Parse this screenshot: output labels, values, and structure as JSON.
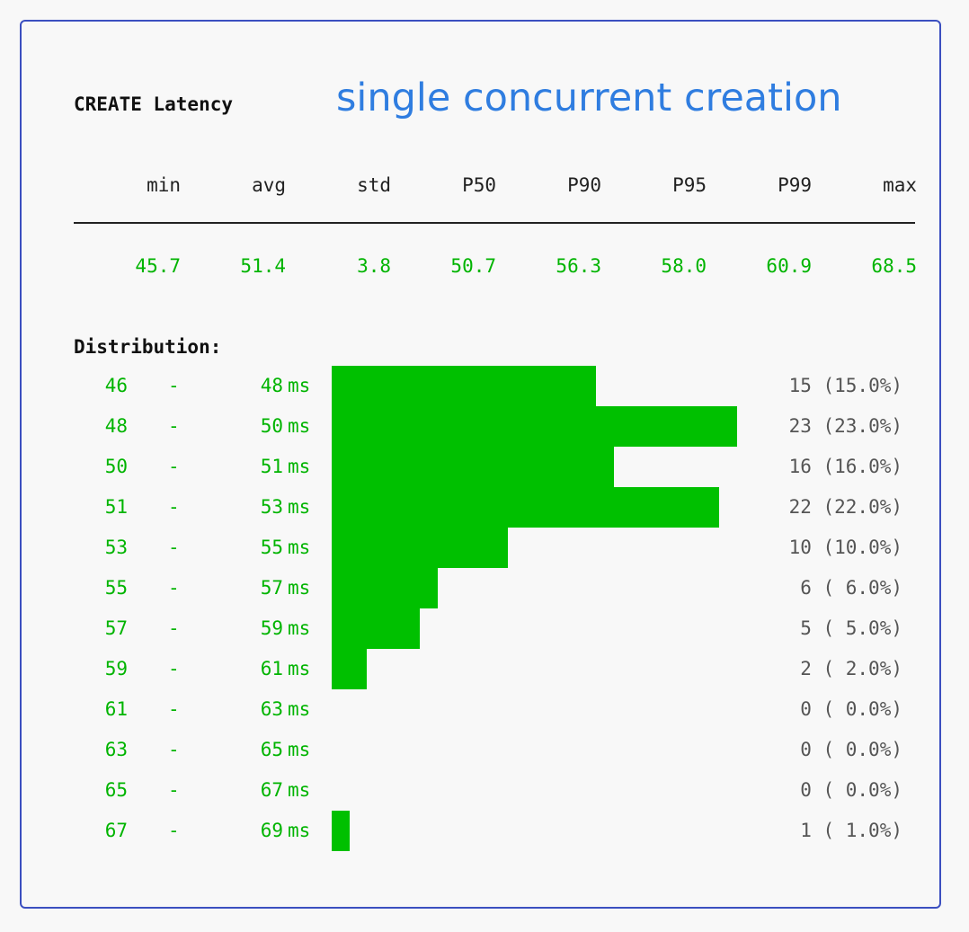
{
  "header": {
    "label": "CREATE Latency",
    "title": "single concurrent creation"
  },
  "stats": {
    "headers": [
      "min",
      "avg",
      "std",
      "P50",
      "P90",
      "P95",
      "P99",
      "max"
    ],
    "values": [
      "45.7",
      "51.4",
      "3.8",
      "50.7",
      "56.3",
      "58.0",
      "60.9",
      "68.5"
    ]
  },
  "distribution": {
    "label": "Distribution:",
    "unit": "ms",
    "rows": [
      {
        "lo": "46",
        "hi": "48",
        "count": 15,
        "count_text": "15 (15.0%)"
      },
      {
        "lo": "48",
        "hi": "50",
        "count": 23,
        "count_text": "23 (23.0%)"
      },
      {
        "lo": "50",
        "hi": "51",
        "count": 16,
        "count_text": "16 (16.0%)"
      },
      {
        "lo": "51",
        "hi": "53",
        "count": 22,
        "count_text": "22 (22.0%)"
      },
      {
        "lo": "53",
        "hi": "55",
        "count": 10,
        "count_text": "10 (10.0%)"
      },
      {
        "lo": "55",
        "hi": "57",
        "count": 6,
        "count_text": "6 ( 6.0%)"
      },
      {
        "lo": "57",
        "hi": "59",
        "count": 5,
        "count_text": "5 ( 5.0%)"
      },
      {
        "lo": "59",
        "hi": "61",
        "count": 2,
        "count_text": "2 ( 2.0%)"
      },
      {
        "lo": "61",
        "hi": "63",
        "count": 0,
        "count_text": "0 ( 0.0%)"
      },
      {
        "lo": "63",
        "hi": "65",
        "count": 0,
        "count_text": "0 ( 0.0%)"
      },
      {
        "lo": "65",
        "hi": "67",
        "count": 0,
        "count_text": "0 ( 0.0%)"
      },
      {
        "lo": "67",
        "hi": "69",
        "count": 1,
        "count_text": "1 ( 1.0%)"
      }
    ]
  },
  "colors": {
    "accent_title": "#2f7de0",
    "value_green": "#00b400",
    "bar_green": "#00c000",
    "border_blue": "#3b4fc0"
  }
}
